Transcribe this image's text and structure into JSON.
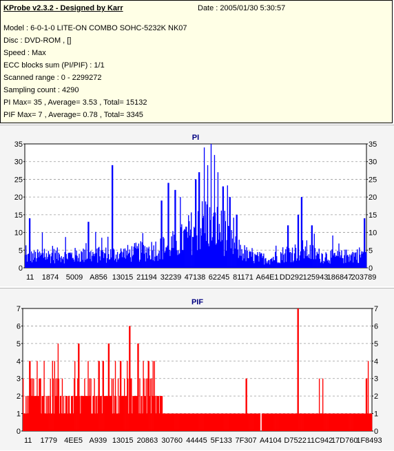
{
  "header": {
    "app_title": "KProbe v2.3.2 - Designed by Karr",
    "date": "Date : 2005/01/30 5:30:57"
  },
  "info": {
    "model": "Model : 6-0-1-0 LITE-ON COMBO SOHC-5232K NK07",
    "disc": "Disc : DVD-ROM ,  []",
    "speed": "Speed : Max",
    "ecc": "ECC blocks sum (PI/PIF) : 1/1",
    "scanned": "Scanned range : 0 - 2299272",
    "sampling": "Sampling count : 4290",
    "pi_stats": "PI Max= 35 , Average= 3.53 , Total= 15132",
    "pif_stats": "PIF Max= 7 , Average= 0.78 , Total= 3345"
  },
  "chart_data": [
    {
      "type": "bar",
      "title": "PI",
      "color": "#0000ff",
      "ylim": [
        0,
        35
      ],
      "yticks": [
        0,
        5,
        10,
        15,
        20,
        25,
        30,
        35
      ],
      "grid": true,
      "xtick_labels": [
        "11",
        "1874",
        "5009",
        "A856",
        "13015",
        "21194",
        "32239",
        "47138",
        "62245",
        "81171",
        "A64E1",
        "DD292",
        "125943",
        "186847",
        "203789"
      ],
      "x_samples": 500,
      "baseline": [
        {
          "x": 0,
          "v": 3
        },
        {
          "x": 0.08,
          "v": 3.5
        },
        {
          "x": 0.18,
          "v": 3.5
        },
        {
          "x": 0.3,
          "v": 4
        },
        {
          "x": 0.4,
          "v": 5.5
        },
        {
          "x": 0.45,
          "v": 7
        },
        {
          "x": 0.5,
          "v": 11
        },
        {
          "x": 0.53,
          "v": 13
        },
        {
          "x": 0.57,
          "v": 11
        },
        {
          "x": 0.6,
          "v": 7
        },
        {
          "x": 0.66,
          "v": 3
        },
        {
          "x": 0.72,
          "v": 2.5
        },
        {
          "x": 0.76,
          "v": 4
        },
        {
          "x": 0.82,
          "v": 5
        },
        {
          "x": 0.86,
          "v": 3.5
        },
        {
          "x": 0.92,
          "v": 3
        },
        {
          "x": 1.0,
          "v": 4
        }
      ],
      "peaks": [
        {
          "x": 0.013,
          "v": 14
        },
        {
          "x": 0.05,
          "v": 10
        },
        {
          "x": 0.185,
          "v": 13
        },
        {
          "x": 0.255,
          "v": 29
        },
        {
          "x": 0.42,
          "v": 24
        },
        {
          "x": 0.44,
          "v": 22
        },
        {
          "x": 0.4,
          "v": 19
        },
        {
          "x": 0.455,
          "v": 20
        },
        {
          "x": 0.5,
          "v": 25
        },
        {
          "x": 0.525,
          "v": 34
        },
        {
          "x": 0.535,
          "v": 29
        },
        {
          "x": 0.545,
          "v": 35
        },
        {
          "x": 0.555,
          "v": 31
        },
        {
          "x": 0.565,
          "v": 27
        },
        {
          "x": 0.51,
          "v": 27
        },
        {
          "x": 0.58,
          "v": 23
        },
        {
          "x": 0.6,
          "v": 20
        },
        {
          "x": 0.62,
          "v": 15
        },
        {
          "x": 0.8,
          "v": 15
        },
        {
          "x": 0.81,
          "v": 20
        },
        {
          "x": 0.77,
          "v": 12
        },
        {
          "x": 0.84,
          "v": 12
        },
        {
          "x": 0.995,
          "v": 14
        }
      ]
    },
    {
      "type": "bar",
      "title": "PIF",
      "color": "#ff0000",
      "ylim": [
        0,
        7
      ],
      "yticks": [
        0,
        1,
        2,
        3,
        4,
        5,
        6,
        7
      ],
      "grid": true,
      "xtick_labels": [
        "11",
        "1779",
        "4EE5",
        "A939",
        "13015",
        "20863",
        "30760",
        "44445",
        "5F133",
        "7F307",
        "A4104",
        "D7522",
        "11C942",
        "17D760",
        "1F8493"
      ],
      "x_samples": 500,
      "zones": [
        {
          "from": 0,
          "to": 0.4,
          "levels": [
            1,
            2,
            2,
            3,
            2,
            1,
            2,
            4,
            2,
            3,
            1,
            2
          ]
        },
        {
          "from": 0.4,
          "to": 1.0,
          "levels": [
            1
          ]
        }
      ],
      "gap": [
        0.68,
        0.684
      ],
      "peaks": [
        {
          "x": 0.02,
          "v": 4
        },
        {
          "x": 0.04,
          "v": 4
        },
        {
          "x": 0.06,
          "v": 4
        },
        {
          "x": 0.1,
          "v": 5
        },
        {
          "x": 0.16,
          "v": 5
        },
        {
          "x": 0.23,
          "v": 4
        },
        {
          "x": 0.245,
          "v": 5
        },
        {
          "x": 0.28,
          "v": 4
        },
        {
          "x": 0.305,
          "v": 6
        },
        {
          "x": 0.33,
          "v": 5
        },
        {
          "x": 0.36,
          "v": 4
        },
        {
          "x": 0.64,
          "v": 3
        },
        {
          "x": 0.788,
          "v": 7
        },
        {
          "x": 0.85,
          "v": 3
        },
        {
          "x": 0.86,
          "v": 3
        },
        {
          "x": 0.99,
          "v": 4
        },
        {
          "x": 0.985,
          "v": 3
        }
      ]
    }
  ]
}
